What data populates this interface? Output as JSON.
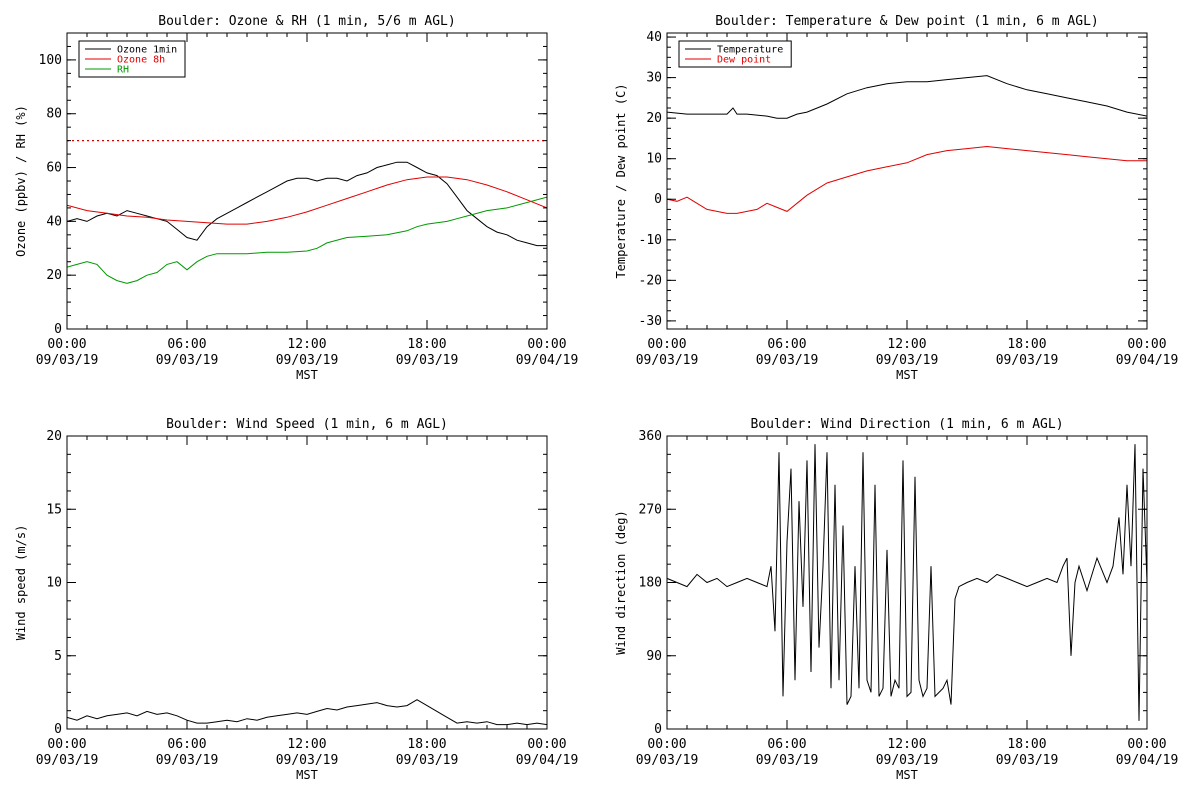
{
  "colors": {
    "black": "#000000",
    "red": "#e00000",
    "green": "#009900"
  },
  "x_axis": {
    "ticks": [
      0,
      6,
      12,
      18,
      24
    ],
    "tick_labels_time": [
      "00:00",
      "06:00",
      "12:00",
      "18:00",
      "00:00"
    ],
    "tick_labels_date": [
      "09/03/19",
      "09/03/19",
      "09/03/19",
      "09/03/19",
      "09/04/19"
    ],
    "xlabel": "MST",
    "xlim": [
      0,
      24
    ]
  },
  "chart_data": [
    {
      "type": "line",
      "title": "Boulder: Ozone & RH (1 min, 5/6 m AGL)",
      "ylabel": "Ozone (ppbv) / RH (%)",
      "ylim": [
        0,
        110
      ],
      "yticks": [
        0,
        20,
        40,
        60,
        80,
        100
      ],
      "xlabel": "MST",
      "legend_position": "top-left",
      "reference_line": {
        "y": 70,
        "style": "dotted",
        "color": "#e00000"
      },
      "series": [
        {
          "name": "Ozone 1min",
          "color": "#000000",
          "x": [
            0,
            0.5,
            1,
            1.5,
            2,
            2.5,
            3,
            3.5,
            4,
            4.5,
            5,
            5.5,
            6,
            6.5,
            7,
            7.5,
            8,
            8.5,
            9,
            9.5,
            10,
            10.5,
            11,
            11.5,
            12,
            12.5,
            13,
            13.5,
            14,
            14.5,
            15,
            15.5,
            16,
            16.5,
            17,
            17.5,
            18,
            18.5,
            19,
            19.5,
            20,
            20.5,
            21,
            21.5,
            22,
            22.5,
            23,
            23.5,
            24
          ],
          "y": [
            40,
            41,
            40,
            42,
            43,
            42,
            44,
            43,
            42,
            41,
            40,
            37,
            34,
            33,
            38,
            41,
            43,
            45,
            47,
            49,
            51,
            53,
            55,
            56,
            56,
            55,
            56,
            56,
            55,
            57,
            58,
            60,
            61,
            62,
            62,
            60,
            58,
            57,
            54,
            49,
            44,
            41,
            38,
            36,
            35,
            33,
            32,
            31,
            31
          ]
        },
        {
          "name": "Ozone 8h",
          "color": "#e00000",
          "x": [
            0,
            1,
            2,
            3,
            4,
            5,
            6,
            7,
            8,
            9,
            10,
            11,
            12,
            13,
            14,
            15,
            16,
            17,
            18,
            19,
            20,
            21,
            22,
            23,
            24
          ],
          "y": [
            46,
            44,
            43,
            42,
            41.5,
            40.5,
            40,
            39.5,
            39,
            39,
            40,
            41.5,
            43.5,
            46,
            48.5,
            51,
            53.5,
            55.5,
            56.5,
            56.5,
            55.5,
            53.5,
            51,
            48,
            45
          ]
        },
        {
          "name": "RH",
          "color": "#009900",
          "x": [
            0,
            0.5,
            1,
            1.5,
            2,
            2.5,
            3,
            3.5,
            4,
            4.5,
            5,
            5.5,
            6,
            6.5,
            7,
            7.5,
            8,
            9,
            10,
            11,
            12,
            12.5,
            13,
            14,
            15,
            16,
            17,
            17.5,
            18,
            19,
            19.5,
            20,
            21,
            22,
            23,
            24
          ],
          "y": [
            23,
            24,
            25,
            24,
            20,
            18,
            17,
            18,
            20,
            21,
            24,
            25,
            22,
            25,
            27,
            28,
            28,
            28,
            28.5,
            28.5,
            29,
            30,
            32,
            34,
            34.5,
            35,
            36.5,
            38,
            39,
            40,
            41,
            42,
            44,
            45,
            47,
            49
          ]
        }
      ]
    },
    {
      "type": "line",
      "title": "Boulder: Temperature & Dew point (1 min, 6 m AGL)",
      "ylabel": "Temperature / Dew point (C)",
      "ylim": [
        -32,
        41
      ],
      "yticks": [
        -30,
        -20,
        -10,
        0,
        10,
        20,
        30,
        40
      ],
      "xlabel": "MST",
      "legend_position": "top-left",
      "series": [
        {
          "name": "Temperature",
          "color": "#000000",
          "x": [
            0,
            1,
            2,
            3,
            3.3,
            3.5,
            4,
            5,
            5.5,
            6,
            6.5,
            7,
            8,
            9,
            10,
            11,
            12,
            13,
            14,
            15,
            16,
            17,
            18,
            19,
            20,
            21,
            22,
            23,
            24
          ],
          "y": [
            21.5,
            21,
            21,
            21,
            22.5,
            21,
            21,
            20.5,
            20,
            20,
            21,
            21.5,
            23.5,
            26,
            27.5,
            28.5,
            29,
            29,
            29.5,
            30,
            30.5,
            28.5,
            27,
            26,
            25,
            24,
            23,
            21.5,
            20.5
          ]
        },
        {
          "name": "Dew point",
          "color": "#e00000",
          "x": [
            0,
            0.5,
            1,
            1.5,
            2,
            2.5,
            3,
            3.5,
            4,
            4.5,
            5,
            5.5,
            6,
            6.5,
            7,
            8,
            9,
            10,
            11,
            12,
            13,
            14,
            15,
            16,
            17,
            18,
            19,
            20,
            21,
            22,
            23,
            24
          ],
          "y": [
            0,
            -0.5,
            0.5,
            -1,
            -2.5,
            -3,
            -3.5,
            -3.5,
            -3,
            -2.5,
            -1,
            -2,
            -3,
            -1,
            1,
            4,
            5.5,
            7,
            8,
            9,
            11,
            12,
            12.5,
            13,
            12.5,
            12,
            11.5,
            11,
            10.5,
            10,
            9.5,
            9.5
          ]
        }
      ]
    },
    {
      "type": "line",
      "title": "Boulder: Wind Speed (1 min, 6 m AGL)",
      "ylabel": "Wind speed (m/s)",
      "ylim": [
        0,
        20
      ],
      "yticks": [
        0,
        5,
        10,
        15,
        20
      ],
      "xlabel": "MST",
      "series": [
        {
          "color": "#000000",
          "x": [
            0,
            0.5,
            1,
            1.5,
            2,
            2.5,
            3,
            3.5,
            4,
            4.5,
            5,
            5.5,
            6,
            6.5,
            7,
            7.5,
            8,
            8.5,
            9,
            9.5,
            10,
            10.5,
            11,
            11.5,
            12,
            12.5,
            13,
            13.5,
            14,
            14.5,
            15,
            15.5,
            16,
            16.5,
            17,
            17.5,
            18,
            18.5,
            19,
            19.5,
            20,
            20.5,
            21,
            21.5,
            22,
            22.5,
            23,
            23.5,
            24
          ],
          "y": [
            0.8,
            0.6,
            0.9,
            0.7,
            0.9,
            1.0,
            1.1,
            0.9,
            1.2,
            1.0,
            1.1,
            0.9,
            0.6,
            0.4,
            0.4,
            0.5,
            0.6,
            0.5,
            0.7,
            0.6,
            0.8,
            0.9,
            1.0,
            1.1,
            1.0,
            1.2,
            1.4,
            1.3,
            1.5,
            1.6,
            1.7,
            1.8,
            1.6,
            1.5,
            1.6,
            2.0,
            1.6,
            1.2,
            0.8,
            0.4,
            0.5,
            0.4,
            0.5,
            0.3,
            0.3,
            0.4,
            0.3,
            0.4,
            0.3
          ]
        }
      ]
    },
    {
      "type": "line",
      "title": "Boulder: Wind Direction (1 min, 6 m AGL)",
      "ylabel": "Wind direction (deg)",
      "ylim": [
        0,
        360
      ],
      "yticks": [
        0,
        90,
        180,
        270,
        360
      ],
      "xlabel": "MST",
      "series": [
        {
          "color": "#000000",
          "x": [
            0,
            0.5,
            1,
            1.5,
            2,
            2.5,
            3,
            3.5,
            4,
            4.5,
            5,
            5.2,
            5.4,
            5.6,
            5.8,
            6,
            6.2,
            6.4,
            6.6,
            6.8,
            7,
            7.2,
            7.4,
            7.6,
            7.8,
            8,
            8.2,
            8.4,
            8.6,
            8.8,
            9,
            9.2,
            9.4,
            9.6,
            9.8,
            10,
            10.2,
            10.4,
            10.6,
            10.8,
            11,
            11.2,
            11.4,
            11.6,
            11.8,
            12,
            12.2,
            12.4,
            12.6,
            12.8,
            13,
            13.2,
            13.4,
            13.6,
            13.8,
            14,
            14.2,
            14.4,
            14.6,
            15,
            15.5,
            16,
            16.5,
            17,
            17.5,
            18,
            18.5,
            19,
            19.5,
            19.8,
            20,
            20.2,
            20.4,
            20.6,
            21,
            21.5,
            22,
            22.3,
            22.6,
            22.8,
            23,
            23.2,
            23.4,
            23.6,
            23.8,
            24
          ],
          "y": [
            185,
            180,
            175,
            190,
            180,
            185,
            175,
            180,
            185,
            180,
            175,
            200,
            120,
            340,
            40,
            230,
            320,
            60,
            280,
            150,
            330,
            70,
            350,
            100,
            200,
            340,
            50,
            300,
            60,
            250,
            30,
            40,
            200,
            50,
            340,
            60,
            45,
            300,
            40,
            50,
            220,
            40,
            60,
            50,
            330,
            40,
            45,
            310,
            60,
            40,
            50,
            200,
            40,
            45,
            50,
            60,
            30,
            160,
            175,
            180,
            185,
            180,
            190,
            185,
            180,
            175,
            180,
            185,
            180,
            200,
            210,
            90,
            180,
            200,
            170,
            210,
            180,
            200,
            260,
            190,
            300,
            200,
            350,
            10,
            320,
            180
          ]
        }
      ]
    }
  ]
}
